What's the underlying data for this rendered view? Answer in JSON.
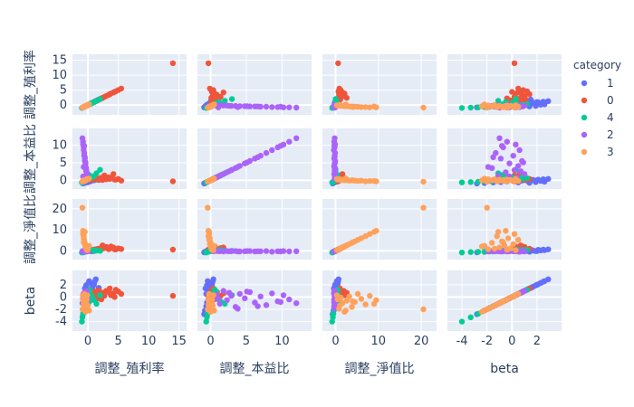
{
  "chart_data": {
    "type": "scatter",
    "subtype": "scatter-matrix",
    "title": "",
    "dimensions": [
      {
        "key": "d0",
        "label": "調整_殖利率",
        "range": [
          -1.8,
          15.5
        ],
        "ticks": [
          0,
          5,
          10,
          15
        ]
      },
      {
        "key": "d1",
        "label": "調整_本益比",
        "range": [
          -1.2,
          13.5
        ],
        "ticks": [
          0,
          5,
          10
        ]
      },
      {
        "key": "d2",
        "label": "調整_淨值比",
        "range": [
          -2.0,
          22.5
        ],
        "ticks": [
          0,
          10,
          20
        ]
      },
      {
        "key": "d3",
        "label": "beta",
        "range": [
          -4.8,
          3.6
        ],
        "ticks": [
          -4,
          -2,
          0,
          2
        ]
      }
    ],
    "y_tick_sets": [
      [
        0,
        5,
        10,
        15
      ],
      [
        0,
        5,
        10
      ],
      [
        0,
        10,
        20
      ],
      [
        -4,
        -2,
        0,
        2
      ]
    ],
    "legend": {
      "title": "category",
      "position": "right",
      "items": [
        {
          "name": "1",
          "color": "#636efa"
        },
        {
          "name": "0",
          "color": "#EF553B"
        },
        {
          "name": "4",
          "color": "#00cc96"
        },
        {
          "name": "2",
          "color": "#ab63fa"
        },
        {
          "name": "3",
          "color": "#FFA15A"
        }
      ]
    },
    "grid": true,
    "series": [
      {
        "name": "1",
        "color": "#636efa",
        "points": [
          [
            -0.8,
            -0.9,
            -0.7,
            -2.8
          ],
          [
            -0.6,
            -0.8,
            -0.5,
            -2.2
          ],
          [
            -0.4,
            -0.6,
            -0.3,
            -1.5
          ],
          [
            -0.2,
            -0.5,
            -0.2,
            -0.9
          ],
          [
            0.0,
            -0.3,
            0.0,
            -0.4
          ],
          [
            0.2,
            -0.2,
            0.1,
            0.1
          ],
          [
            0.4,
            -0.1,
            0.2,
            0.6
          ],
          [
            0.5,
            0.0,
            0.3,
            1.1
          ],
          [
            0.7,
            0.1,
            0.4,
            1.6
          ],
          [
            0.9,
            0.2,
            0.5,
            2.1
          ],
          [
            1.1,
            0.3,
            0.6,
            2.5
          ],
          [
            1.3,
            0.4,
            0.7,
            2.9
          ],
          [
            -0.5,
            -0.7,
            -0.4,
            1.4
          ],
          [
            -0.3,
            -0.5,
            -0.1,
            1.9
          ],
          [
            0.1,
            -0.2,
            0.2,
            2.3
          ],
          [
            0.3,
            0.0,
            0.0,
            1.2
          ],
          [
            0.6,
            -0.1,
            -0.2,
            0.8
          ],
          [
            0.8,
            0.1,
            0.1,
            1.7
          ],
          [
            1.0,
            0.0,
            -0.1,
            2.0
          ],
          [
            0.2,
            -0.4,
            0.3,
            2.6
          ],
          [
            -0.1,
            -0.6,
            -0.3,
            0.5
          ],
          [
            0.4,
            -0.3,
            0.4,
            1.3
          ],
          [
            1.5,
            0.2,
            0.2,
            0.9
          ],
          [
            1.8,
            0.1,
            0.5,
            1.5
          ]
        ]
      },
      {
        "name": "0",
        "color": "#EF553B",
        "points": [
          [
            14.0,
            -0.3,
            0.6,
            0.2
          ],
          [
            5.5,
            -0.1,
            0.9,
            0.5
          ],
          [
            5.0,
            0.4,
            1.2,
            0.9
          ],
          [
            4.6,
            0.2,
            0.7,
            1.2
          ],
          [
            4.2,
            1.8,
            1.6,
            0.6
          ],
          [
            3.8,
            0.6,
            2.1,
            0.3
          ],
          [
            3.4,
            0.9,
            0.8,
            0.8
          ],
          [
            3.0,
            0.3,
            1.9,
            1.0
          ],
          [
            2.7,
            1.4,
            1.3,
            0.2
          ],
          [
            2.4,
            0.1,
            2.6,
            0.7
          ],
          [
            2.1,
            0.7,
            0.5,
            0.4
          ],
          [
            1.8,
            0.2,
            1.1,
            1.1
          ],
          [
            1.5,
            0.5,
            0.9,
            0.0
          ],
          [
            1.2,
            0.3,
            0.4,
            0.9
          ],
          [
            0.9,
            0.8,
            0.6,
            0.5
          ],
          [
            0.6,
            0.1,
            0.2,
            0.7
          ],
          [
            0.3,
            0.4,
            0.5,
            0.3
          ],
          [
            0.0,
            0.2,
            0.1,
            0.6
          ],
          [
            -0.3,
            0.1,
            0.3,
            0.1
          ],
          [
            -0.6,
            -0.2,
            0.0,
            0.4
          ],
          [
            2.2,
            0.5,
            0.6,
            -0.4
          ],
          [
            1.6,
            0.3,
            0.8,
            -0.2
          ],
          [
            3.6,
            0.4,
            1.0,
            1.4
          ],
          [
            4.4,
            0.2,
            0.7,
            0.0
          ]
        ]
      },
      {
        "name": "4",
        "color": "#00cc96",
        "points": [
          [
            -1.0,
            -0.6,
            -0.8,
            -4.0
          ],
          [
            -0.9,
            -0.5,
            -0.6,
            -3.3
          ],
          [
            -0.8,
            -0.4,
            -0.5,
            -2.7
          ],
          [
            -0.7,
            -0.3,
            -0.4,
            -2.2
          ],
          [
            -0.6,
            -0.2,
            -0.3,
            -1.8
          ],
          [
            -0.5,
            -0.1,
            -0.2,
            -1.4
          ],
          [
            -0.4,
            0.0,
            -0.1,
            -1.0
          ],
          [
            -0.3,
            0.1,
            0.0,
            -0.6
          ],
          [
            -0.2,
            0.2,
            0.1,
            -0.2
          ],
          [
            -0.1,
            0.3,
            0.2,
            0.2
          ],
          [
            0.0,
            0.4,
            0.3,
            0.6
          ],
          [
            0.1,
            0.5,
            0.4,
            0.9
          ],
          [
            0.3,
            0.6,
            0.5,
            1.2
          ],
          [
            0.5,
            0.7,
            0.6,
            0.4
          ],
          [
            0.7,
            0.9,
            0.3,
            0.0
          ],
          [
            1.0,
            1.2,
            0.2,
            -0.5
          ],
          [
            1.4,
            2.0,
            0.1,
            -1.1
          ],
          [
            2.0,
            3.0,
            0.0,
            0.3
          ],
          [
            0.2,
            1.5,
            0.4,
            -0.8
          ],
          [
            -0.2,
            0.8,
            0.2,
            0.8
          ]
        ]
      },
      {
        "name": "2",
        "color": "#ab63fa",
        "points": [
          [
            -0.9,
            12.0,
            -0.2,
            -1.0
          ],
          [
            -0.8,
            11.0,
            -0.3,
            -0.4
          ],
          [
            -0.8,
            10.2,
            -0.1,
            0.3
          ],
          [
            -0.7,
            9.4,
            -0.2,
            -0.7
          ],
          [
            -0.7,
            8.6,
            -0.4,
            0.6
          ],
          [
            -0.6,
            7.8,
            -0.1,
            -1.3
          ],
          [
            -0.6,
            7.0,
            -0.2,
            0.1
          ],
          [
            -0.5,
            6.2,
            -0.3,
            -0.9
          ],
          [
            -0.5,
            5.5,
            -0.1,
            0.8
          ],
          [
            -0.4,
            4.8,
            -0.2,
            -0.2
          ],
          [
            -0.4,
            4.1,
            -0.3,
            0.5
          ],
          [
            -0.3,
            3.5,
            -0.1,
            -1.6
          ],
          [
            -0.3,
            2.9,
            -0.2,
            0.2
          ],
          [
            -0.2,
            2.3,
            -0.1,
            -0.5
          ],
          [
            -0.2,
            1.8,
            -0.3,
            1.0
          ],
          [
            -0.1,
            1.3,
            -0.2,
            -1.1
          ],
          [
            -0.1,
            0.8,
            -0.1,
            0.4
          ],
          [
            0.0,
            0.4,
            -0.2,
            -0.3
          ],
          [
            -0.6,
            9.8,
            -0.3,
            -0.8
          ],
          [
            -0.5,
            6.6,
            -0.2,
            -1.5
          ],
          [
            -0.4,
            5.1,
            -0.1,
            0.9
          ],
          [
            -0.7,
            3.8,
            -0.3,
            -1.9
          ],
          [
            -0.3,
            2.6,
            -0.2,
            0.7
          ],
          [
            -0.8,
            1.1,
            -0.1,
            -0.2
          ]
        ]
      },
      {
        "name": "3",
        "color": "#FFA15A",
        "points": [
          [
            -0.9,
            -0.4,
            20.5,
            -2.0
          ],
          [
            -0.8,
            -0.3,
            9.5,
            -0.5
          ],
          [
            -0.8,
            -0.2,
            8.0,
            0.2
          ],
          [
            -0.7,
            -0.3,
            7.0,
            -1.2
          ],
          [
            -0.7,
            -0.1,
            6.0,
            -0.3
          ],
          [
            -0.6,
            -0.2,
            5.2,
            0.5
          ],
          [
            -0.6,
            -0.1,
            4.5,
            -0.8
          ],
          [
            -0.5,
            0.0,
            3.8,
            -1.6
          ],
          [
            -0.5,
            -0.1,
            3.2,
            0.1
          ],
          [
            -0.4,
            0.1,
            2.6,
            -0.6
          ],
          [
            -0.4,
            0.0,
            2.1,
            -2.4
          ],
          [
            -0.3,
            0.2,
            1.6,
            -1.0
          ],
          [
            -0.3,
            0.1,
            1.2,
            -0.1
          ],
          [
            -0.2,
            0.3,
            0.8,
            -1.9
          ],
          [
            -0.2,
            0.2,
            0.5,
            -0.4
          ],
          [
            -0.1,
            0.4,
            0.3,
            0.3
          ],
          [
            0.0,
            0.3,
            1.0,
            -1.4
          ],
          [
            0.2,
            0.5,
            2.4,
            -2.2
          ],
          [
            -0.5,
            -0.2,
            9.0,
            -1.1
          ],
          [
            -0.7,
            0.0,
            4.0,
            -0.7
          ]
        ]
      }
    ]
  }
}
